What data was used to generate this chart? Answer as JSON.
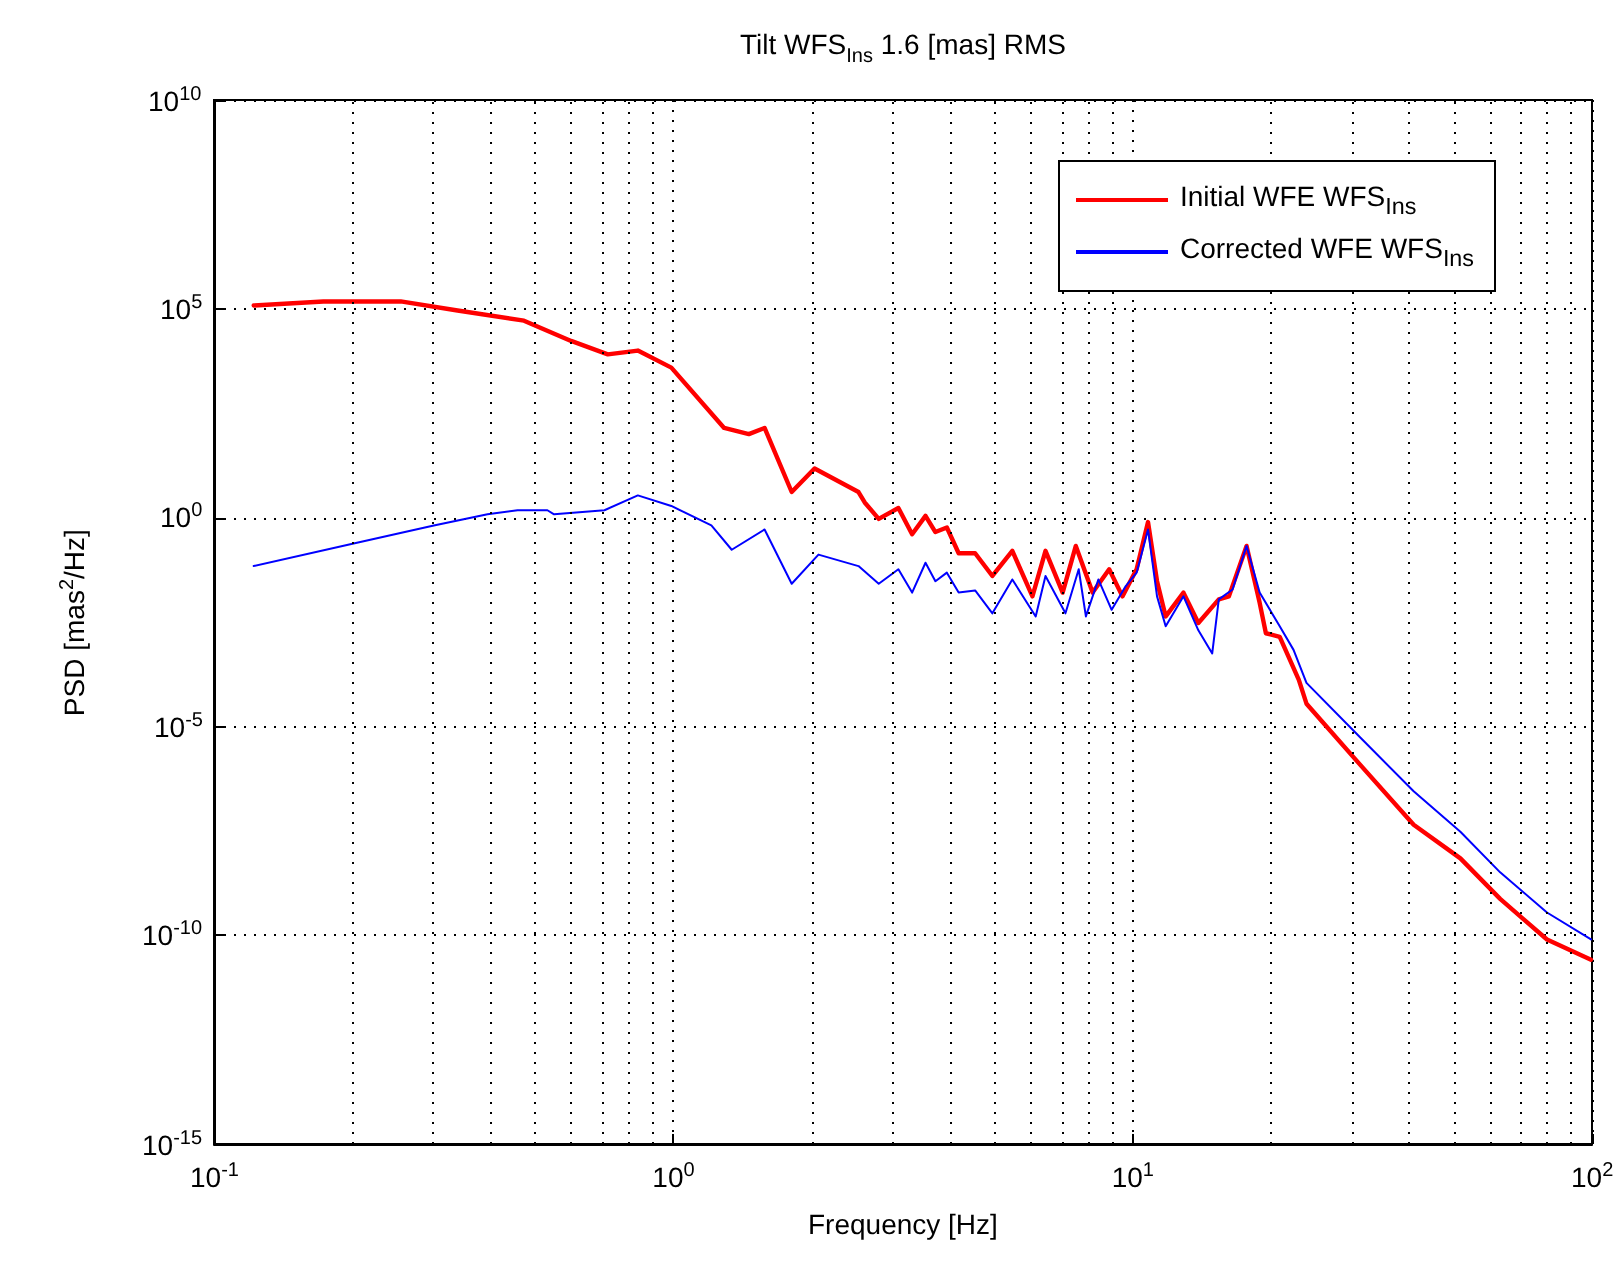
{
  "chart_data": {
    "type": "line",
    "title": "Tilt WFS$_{Ins}$ 1.6 [mas] RMS",
    "xlabel": "Frequency [Hz]",
    "ylabel": "PSD [mas$^{2}$/Hz]",
    "log": "xy",
    "grid": true,
    "legend": "top right",
    "marker": "none",
    "line_style": "solid",
    "xlim": [
      0.1,
      100
    ],
    "xticks": [
      {
        "value": 0.1,
        "label": "10$^{-1}$"
      },
      {
        "value": 1,
        "label": "10$^{0}$"
      },
      {
        "value": 10,
        "label": "10$^{1}$"
      },
      {
        "value": 100,
        "label": "10$^{2}$"
      }
    ],
    "ylim": [
      1e-15,
      10000000000.0
    ],
    "yticks": [
      {
        "value": 1e-15,
        "label": "10$^{-15}$"
      },
      {
        "value": 1e-10,
        "label": "10$^{-10}$"
      },
      {
        "value": 1e-05,
        "label": "10$^{-5}$"
      },
      {
        "value": 1,
        "label": "10$^{0}$"
      },
      {
        "value": 100000.0,
        "label": "10$^{5}$"
      },
      {
        "value": 10000000000.0,
        "label": "10$^{10}$"
      }
    ],
    "series": [
      {
        "name": "Initial WFE WFS$_{Ins}$",
        "color": "#ff0000",
        "x": [
          0.122,
          0.173,
          0.255,
          0.339,
          0.473,
          0.599,
          0.72,
          0.837,
          0.99,
          1.29,
          1.46,
          1.58,
          1.81,
          2.03,
          2.53,
          2.61,
          2.8,
          3.09,
          3.31,
          3.54,
          3.72,
          3.94,
          4.18,
          4.54,
          4.95,
          5.47,
          6.05,
          6.46,
          7.04,
          7.52,
          8.18,
          8.89,
          9.5,
          10.2,
          10.8,
          11.3,
          11.8,
          12.9,
          13.9,
          15.4,
          16.2,
          17.7,
          18.9,
          19.5,
          20.9,
          23.0,
          23.9,
          31.3,
          40.9,
          51.7,
          63.1,
          79.8,
          99.5
        ],
        "values": [
          120000.0,
          150000.0,
          150000.0,
          91000.0,
          52000.0,
          17000.0,
          8100.0,
          10000.0,
          3900.0,
          140,
          100,
          140,
          4.1,
          15,
          4.1,
          2.3,
          0.93,
          1.7,
          0.4,
          1.1,
          0.45,
          0.58,
          0.14,
          0.14,
          0.04,
          0.16,
          0.013,
          0.16,
          0.016,
          0.21,
          0.016,
          0.058,
          0.013,
          0.058,
          0.78,
          0.03,
          0.0043,
          0.016,
          0.003,
          0.011,
          0.013,
          0.21,
          0.0091,
          0.0017,
          0.0014,
          0.00013,
          3.5e-05,
          1.2e-06,
          4.4e-08,
          6.9e-09,
          7.4e-10,
          7.9e-11,
          2.6e-11
        ]
      },
      {
        "name": "Corrected WFE WFS$_{Ins}$",
        "color": "#0000ff",
        "x": [
          0.122,
          0.198,
          0.301,
          0.394,
          0.458,
          0.532,
          0.55,
          0.708,
          0.837,
          0.99,
          1.21,
          1.34,
          1.58,
          1.81,
          2.07,
          2.53,
          2.8,
          3.09,
          3.31,
          3.54,
          3.72,
          3.94,
          4.18,
          4.54,
          4.95,
          5.47,
          6.15,
          6.46,
          7.14,
          7.63,
          7.91,
          8.42,
          9.0,
          9.66,
          10.2,
          10.8,
          11.3,
          11.8,
          12.9,
          13.9,
          14.9,
          15.4,
          16.5,
          17.7,
          18.9,
          20.9,
          22.4,
          23.9,
          31.3,
          40.9,
          51.7,
          63.1,
          79.8,
          99.5
        ],
        "values": [
          0.069,
          0.23,
          0.65,
          1.2,
          1.5,
          1.5,
          1.2,
          1.5,
          3.4,
          1.9,
          0.65,
          0.17,
          0.52,
          0.026,
          0.13,
          0.069,
          0.026,
          0.058,
          0.016,
          0.083,
          0.03,
          0.048,
          0.016,
          0.018,
          0.0051,
          0.033,
          0.0043,
          0.04,
          0.0051,
          0.058,
          0.0043,
          0.033,
          0.0062,
          0.023,
          0.048,
          0.52,
          0.013,
          0.0025,
          0.013,
          0.002,
          0.00056,
          0.011,
          0.019,
          0.21,
          0.016,
          0.0025,
          0.00068,
          0.00011,
          5.4e-06,
          2.8e-07,
          3e-08,
          3.2e-09,
          3.5e-10,
          7.9e-11
        ]
      }
    ]
  }
}
